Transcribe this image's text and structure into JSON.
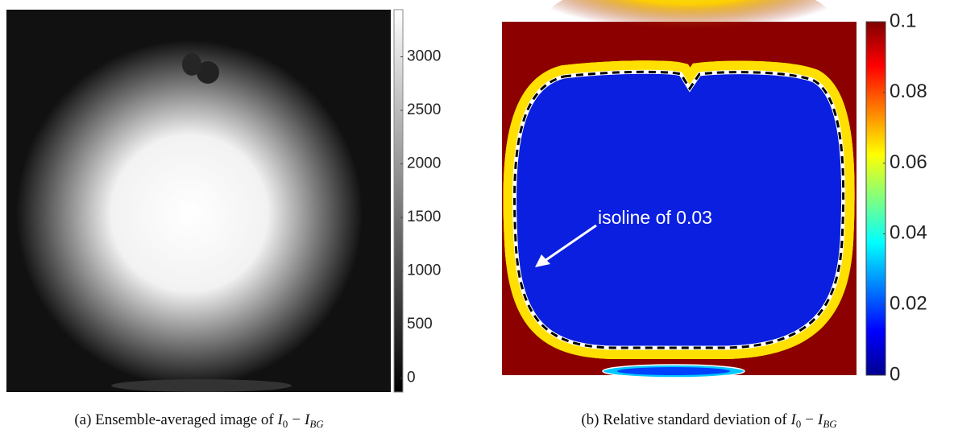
{
  "panels": [
    {
      "caption": {
        "text": "(a) Ensemble-averaged image of",
        "formula": {
          "base1": "I",
          "sub1": "0",
          "op": "−",
          "base2": "I",
          "sub2": "BG"
        }
      },
      "colorbar": {
        "lim": [
          -130,
          3440
        ],
        "ticks": [
          0,
          500,
          1000,
          1500,
          2000,
          2500,
          3000
        ]
      }
    },
    {
      "caption": {
        "text": "(b) Relative standard deviation of",
        "formula": {
          "base1": "I",
          "sub1": "0",
          "op": "−",
          "base2": "I",
          "sub2": "BG"
        }
      },
      "annotation": "isoline of 0.03",
      "colorbar": {
        "lim": [
          0,
          0.1
        ],
        "ticks": [
          0,
          0.02,
          0.04,
          0.06,
          0.08,
          0.1
        ]
      }
    }
  ]
}
